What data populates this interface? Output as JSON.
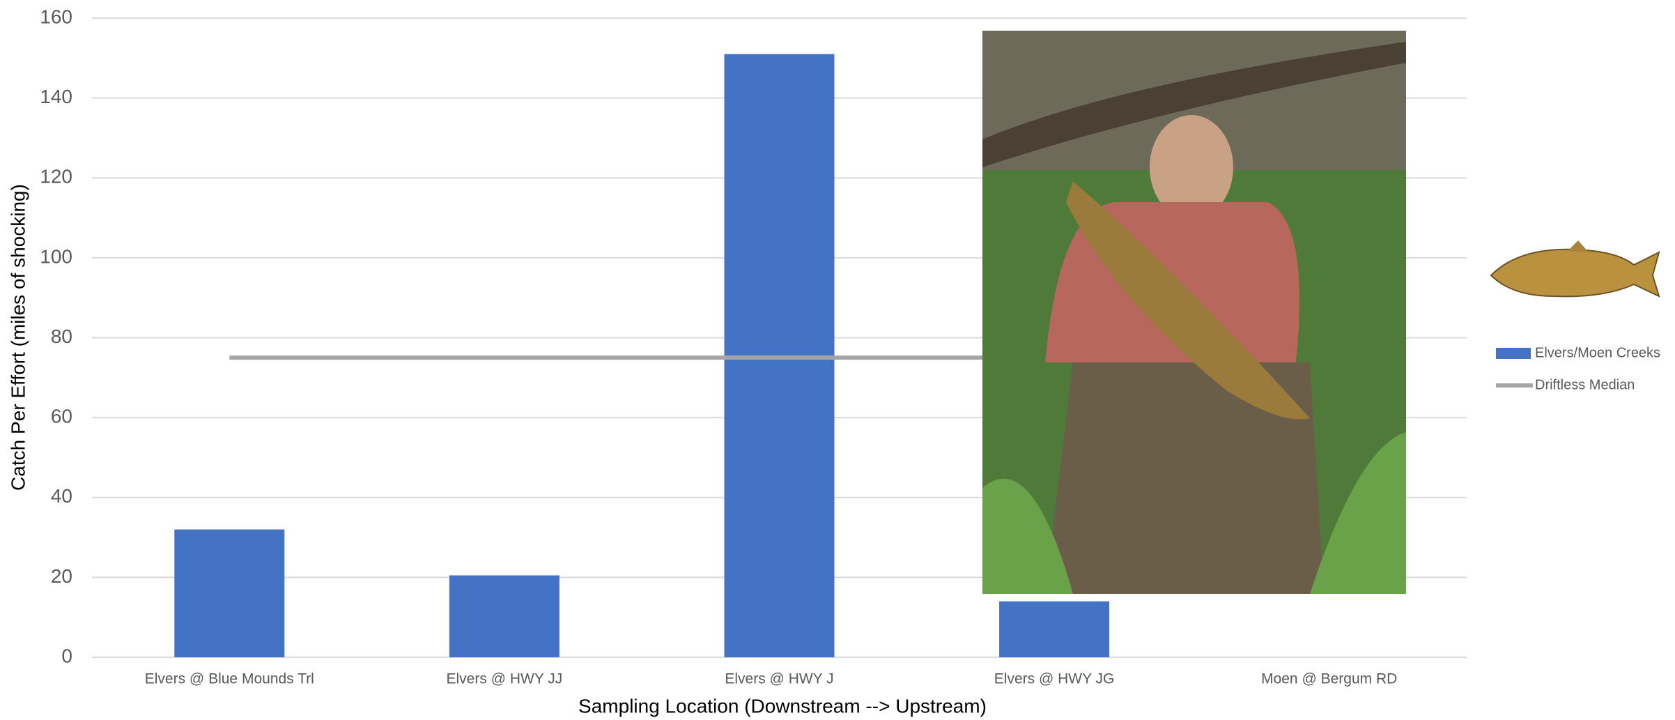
{
  "chart_data": {
    "type": "bar",
    "x_label": "Sampling Location (Downstream --> Upstream)",
    "y_label": "Catch Per Effort (miles of shocking)",
    "categories": [
      "Elvers @ Blue Mounds Trl",
      "Elvers @ HWY JJ",
      "Elvers @ HWY J",
      "Elvers @ HWY JG",
      "Moen @ Bergum RD"
    ],
    "series": [
      {
        "name": "Elvers/Moen Creeks",
        "color": "#4472c4",
        "type": "bar",
        "values": [
          32,
          20.5,
          151,
          14,
          null
        ]
      },
      {
        "name": "Driftless Median",
        "color": "#a5a5a5",
        "type": "line",
        "values": [
          75,
          75,
          75,
          75,
          75
        ]
      }
    ],
    "ylim": [
      0,
      160
    ],
    "yticks": [
      0,
      20,
      40,
      60,
      80,
      100,
      120,
      140,
      160
    ],
    "grid": true,
    "legend": "right"
  }
}
